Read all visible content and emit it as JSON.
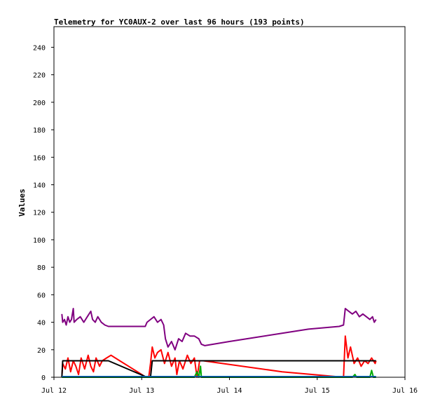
{
  "chart_data": {
    "type": "line",
    "title": "Telemetry for YC0AUX-2 over last 96 hours (193 points)",
    "ylabel": "Values",
    "xlabel": "",
    "xlim": [
      "Jul 12",
      "Jul 16"
    ],
    "ylim": [
      0,
      255
    ],
    "x_ticks": [
      {
        "label": "Jul 12",
        "day": 12
      },
      {
        "label": "Jul 13",
        "day": 13
      },
      {
        "label": "Jul 14",
        "day": 14
      },
      {
        "label": "Jul 15",
        "day": 15
      },
      {
        "label": "Jul 16",
        "day": 16
      }
    ],
    "y_ticks": [
      0,
      20,
      40,
      60,
      80,
      100,
      120,
      140,
      160,
      180,
      200,
      220,
      240
    ],
    "grid": false,
    "legend": "none",
    "series": [
      {
        "color": "#800080",
        "points": [
          [
            12.09,
            46
          ],
          [
            12.1,
            40
          ],
          [
            12.12,
            42
          ],
          [
            12.14,
            38
          ],
          [
            12.16,
            44
          ],
          [
            12.18,
            40
          ],
          [
            12.2,
            42
          ],
          [
            12.22,
            50
          ],
          [
            12.23,
            40
          ],
          [
            12.26,
            42
          ],
          [
            12.3,
            44
          ],
          [
            12.34,
            40
          ],
          [
            12.38,
            44
          ],
          [
            12.42,
            48
          ],
          [
            12.44,
            42
          ],
          [
            12.47,
            40
          ],
          [
            12.5,
            44
          ],
          [
            12.54,
            40
          ],
          [
            12.58,
            38
          ],
          [
            12.62,
            37
          ],
          [
            12.7,
            37
          ],
          [
            12.85,
            37
          ],
          [
            13.0,
            37
          ],
          [
            13.04,
            37
          ],
          [
            13.06,
            40
          ],
          [
            13.1,
            42
          ],
          [
            13.14,
            44
          ],
          [
            13.18,
            40
          ],
          [
            13.22,
            42
          ],
          [
            13.25,
            38
          ],
          [
            13.27,
            28
          ],
          [
            13.3,
            22
          ],
          [
            13.34,
            26
          ],
          [
            13.38,
            20
          ],
          [
            13.42,
            28
          ],
          [
            13.46,
            26
          ],
          [
            13.5,
            32
          ],
          [
            13.55,
            30
          ],
          [
            13.6,
            30
          ],
          [
            13.65,
            28
          ],
          [
            13.68,
            24
          ],
          [
            13.72,
            23
          ],
          [
            14.0,
            26
          ],
          [
            14.3,
            29
          ],
          [
            14.6,
            32
          ],
          [
            14.9,
            35
          ],
          [
            15.25,
            37
          ],
          [
            15.3,
            38
          ],
          [
            15.32,
            50
          ],
          [
            15.36,
            48
          ],
          [
            15.4,
            46
          ],
          [
            15.44,
            48
          ],
          [
            15.48,
            44
          ],
          [
            15.52,
            46
          ],
          [
            15.56,
            44
          ],
          [
            15.6,
            42
          ],
          [
            15.63,
            44
          ],
          [
            15.65,
            40
          ],
          [
            15.67,
            42
          ]
        ]
      },
      {
        "color": "#ff0000",
        "points": [
          [
            12.09,
            0
          ],
          [
            12.1,
            10
          ],
          [
            12.13,
            6
          ],
          [
            12.16,
            14
          ],
          [
            12.19,
            4
          ],
          [
            12.22,
            12
          ],
          [
            12.25,
            8
          ],
          [
            12.28,
            2
          ],
          [
            12.31,
            14
          ],
          [
            12.35,
            6
          ],
          [
            12.39,
            16
          ],
          [
            12.42,
            8
          ],
          [
            12.45,
            4
          ],
          [
            12.48,
            14
          ],
          [
            12.52,
            8
          ],
          [
            12.55,
            12
          ],
          [
            12.6,
            14
          ],
          [
            12.65,
            16
          ],
          [
            12.75,
            12
          ],
          [
            12.9,
            6
          ],
          [
            13.05,
            0
          ],
          [
            13.08,
            0
          ],
          [
            13.1,
            10
          ],
          [
            13.12,
            22
          ],
          [
            13.15,
            14
          ],
          [
            13.18,
            18
          ],
          [
            13.22,
            20
          ],
          [
            13.26,
            10
          ],
          [
            13.3,
            18
          ],
          [
            13.34,
            8
          ],
          [
            13.38,
            14
          ],
          [
            13.4,
            2
          ],
          [
            13.43,
            12
          ],
          [
            13.47,
            6
          ],
          [
            13.52,
            16
          ],
          [
            13.56,
            10
          ],
          [
            13.6,
            14
          ],
          [
            13.63,
            0
          ],
          [
            13.66,
            12
          ],
          [
            13.7,
            12
          ],
          [
            14.6,
            4
          ],
          [
            15.3,
            0
          ],
          [
            15.32,
            30
          ],
          [
            15.35,
            14
          ],
          [
            15.38,
            22
          ],
          [
            15.42,
            10
          ],
          [
            15.46,
            14
          ],
          [
            15.5,
            8
          ],
          [
            15.54,
            12
          ],
          [
            15.58,
            10
          ],
          [
            15.62,
            14
          ],
          [
            15.66,
            10
          ],
          [
            15.67,
            12
          ]
        ]
      },
      {
        "color": "#000000",
        "points": [
          [
            12.09,
            0
          ],
          [
            12.1,
            12
          ],
          [
            12.55,
            12
          ],
          [
            12.62,
            12
          ],
          [
            13.06,
            0
          ],
          [
            13.1,
            0
          ],
          [
            13.12,
            12
          ],
          [
            13.7,
            12
          ],
          [
            15.67,
            12
          ]
        ]
      },
      {
        "color": "#00aa00",
        "points": [
          [
            12.09,
            0
          ],
          [
            13.6,
            0
          ],
          [
            13.63,
            4
          ],
          [
            13.65,
            0
          ],
          [
            13.67,
            8
          ],
          [
            13.68,
            0
          ],
          [
            15.4,
            0
          ],
          [
            15.43,
            2
          ],
          [
            15.45,
            0
          ],
          [
            15.6,
            0
          ],
          [
            15.62,
            5
          ],
          [
            15.64,
            0
          ],
          [
            15.67,
            0
          ]
        ]
      },
      {
        "color": "#0070c0",
        "points": [
          [
            12.09,
            0.5
          ],
          [
            15.67,
            0.5
          ]
        ]
      }
    ]
  }
}
